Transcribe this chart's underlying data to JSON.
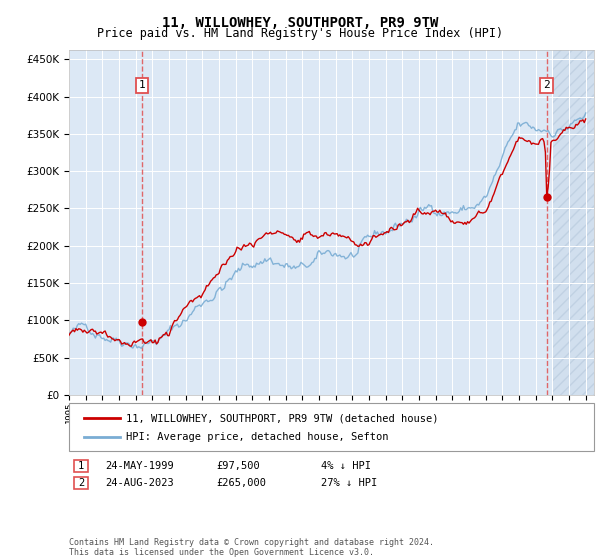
{
  "title": "11, WILLOWHEY, SOUTHPORT, PR9 9TW",
  "subtitle": "Price paid vs. HM Land Registry's House Price Index (HPI)",
  "ytick_values": [
    0,
    50000,
    100000,
    150000,
    200000,
    250000,
    300000,
    350000,
    400000,
    450000
  ],
  "ylim": [
    0,
    462000
  ],
  "xlim_start": 1995.0,
  "xlim_end": 2026.5,
  "hpi_color": "#7aadd4",
  "price_color": "#cc0000",
  "plot_bg": "#dce8f5",
  "grid_color": "#ffffff",
  "transaction1_x": 1999.39,
  "transaction1_y": 97500,
  "transaction2_x": 2023.65,
  "transaction2_y": 265000,
  "legend_label_red": "11, WILLOWHEY, SOUTHPORT, PR9 9TW (detached house)",
  "legend_label_blue": "HPI: Average price, detached house, Sefton",
  "table_row1": [
    "1",
    "24-MAY-1999",
    "£97,500",
    "4% ↓ HPI"
  ],
  "table_row2": [
    "2",
    "24-AUG-2023",
    "£265,000",
    "27% ↓ HPI"
  ],
  "footer": "Contains HM Land Registry data © Crown copyright and database right 2024.\nThis data is licensed under the Open Government Licence v3.0.",
  "hatch_color": "#b8cfe0",
  "vline_color": "#e05050"
}
